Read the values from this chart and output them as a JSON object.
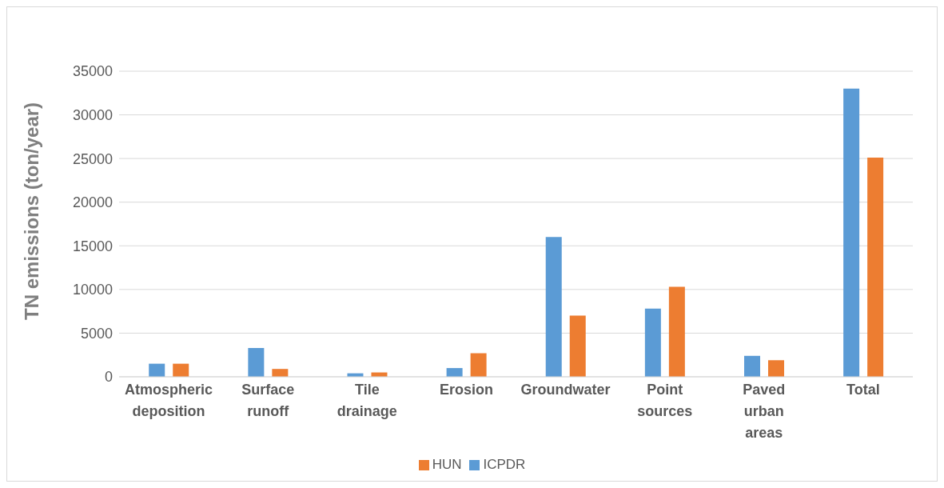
{
  "chart_data": {
    "type": "bar",
    "ylabel": "TN emissions (ton/year)",
    "categories": [
      "Atmospheric deposition",
      "Surface runoff",
      "Tile drainage",
      "Erosion",
      "Groundwater",
      "Point sources",
      "Paved urban areas",
      "Total"
    ],
    "series": [
      {
        "name": "ICPDR",
        "color": "#5b9bd5",
        "values": [
          1500,
          3300,
          400,
          1000,
          16000,
          7800,
          2400,
          33000
        ]
      },
      {
        "name": "HUN",
        "color": "#ed7d31",
        "values": [
          1500,
          900,
          500,
          2700,
          7000,
          10300,
          1900,
          25100
        ]
      }
    ],
    "ylim": [
      0,
      35000
    ],
    "yticks": [
      0,
      5000,
      10000,
      15000,
      20000,
      25000,
      30000,
      35000
    ],
    "grid": "y",
    "legend": "bottom"
  }
}
